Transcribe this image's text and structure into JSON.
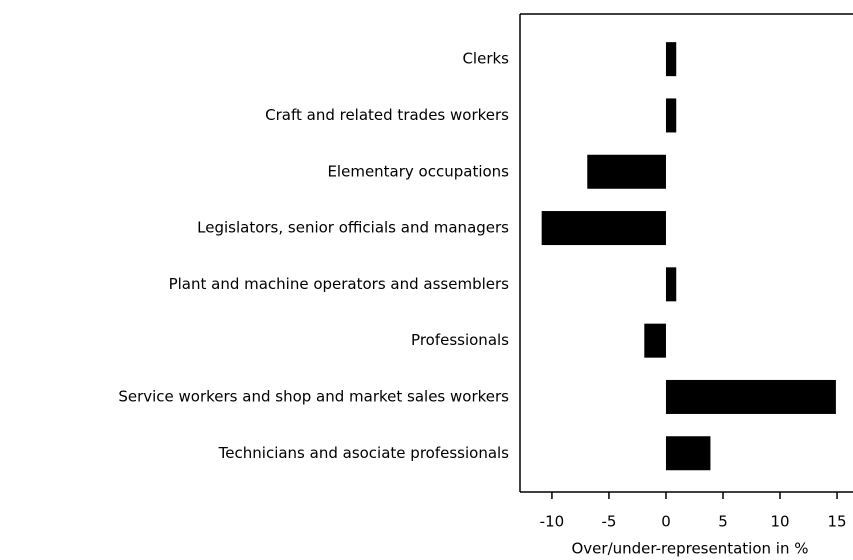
{
  "chart_data": {
    "type": "barh",
    "categories": [
      "Clerks",
      "Craft and related trades workers",
      "Elementary occupations",
      "Legislators, senior officials and managers",
      "Plant and machine operators and assemblers",
      "Professionals",
      "Service workers and shop and market sales workers",
      "Technicians and asociate professionals"
    ],
    "values": [
      0.9,
      0.9,
      -6.9,
      -10.9,
      0.9,
      -1.9,
      14.9,
      3.9
    ],
    "color": "#000000",
    "xlabel": "Over/under-representation in %",
    "xlim": [
      -12.8,
      16.4
    ],
    "xticks": [
      -10,
      -5,
      0,
      5,
      10,
      15
    ],
    "grid": false
  }
}
